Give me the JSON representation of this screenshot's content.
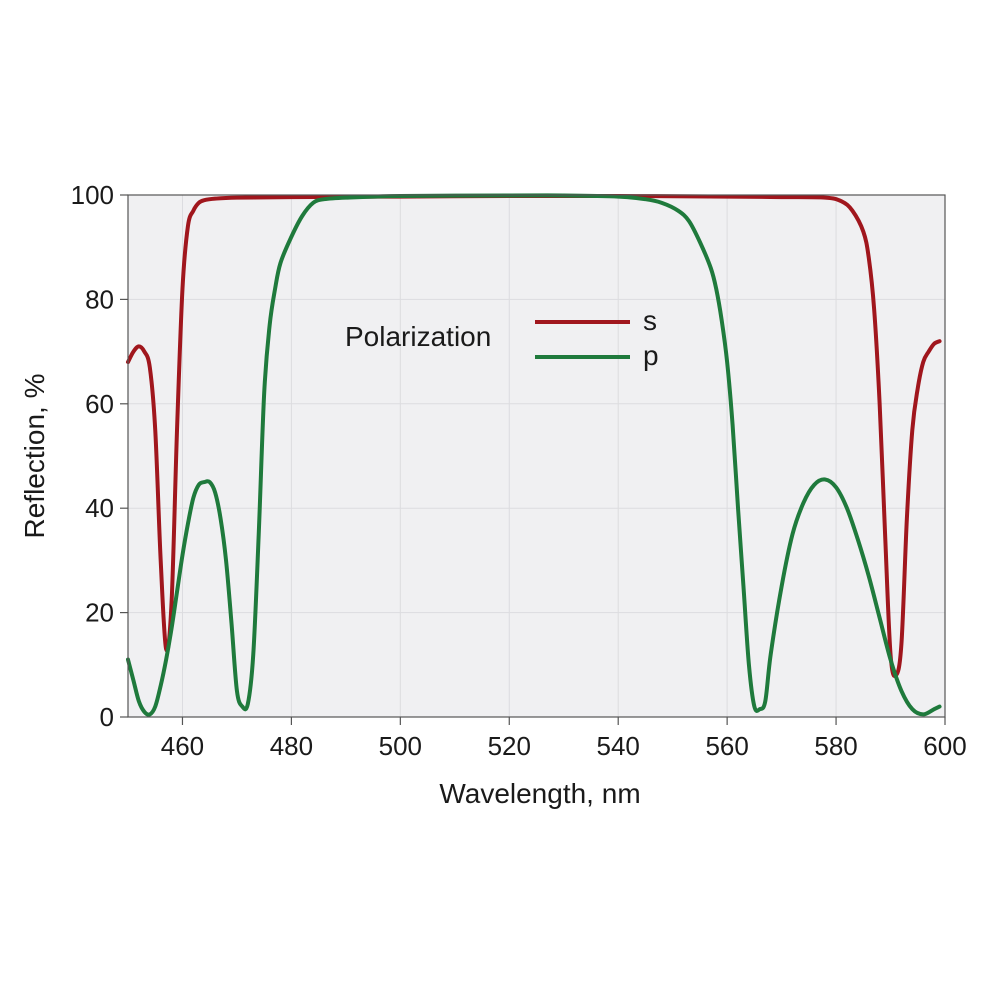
{
  "chart_data": {
    "type": "line",
    "xlabel": "Wavelength, nm",
    "ylabel": "Reflection, %",
    "xlim": [
      450,
      600
    ],
    "ylim": [
      0,
      100
    ],
    "x_ticks": [
      460,
      480,
      500,
      520,
      540,
      560,
      580,
      600
    ],
    "y_ticks": [
      0,
      20,
      40,
      60,
      80,
      100
    ],
    "grid": true,
    "legend": {
      "title": "Polarization",
      "placement": "upper-center"
    },
    "colors": {
      "s": "#a0161d",
      "p": "#1f7a3c",
      "plot_background": "#f0f0f2",
      "grid": "#dcdcdf"
    },
    "series": [
      {
        "name": "s",
        "color": "#a0161d",
        "points": [
          [
            450,
            68
          ],
          [
            451,
            70
          ],
          [
            452,
            71
          ],
          [
            453,
            70
          ],
          [
            454,
            67
          ],
          [
            455,
            55
          ],
          [
            456,
            30
          ],
          [
            457,
            13
          ],
          [
            458,
            22
          ],
          [
            459,
            55
          ],
          [
            460,
            82
          ],
          [
            461,
            94
          ],
          [
            462,
            97
          ],
          [
            463,
            98.5
          ],
          [
            464,
            99
          ],
          [
            466,
            99.3
          ],
          [
            470,
            99.5
          ],
          [
            480,
            99.6
          ],
          [
            500,
            99.7
          ],
          [
            520,
            99.8
          ],
          [
            540,
            99.8
          ],
          [
            560,
            99.7
          ],
          [
            570,
            99.6
          ],
          [
            578,
            99.5
          ],
          [
            581,
            98.8
          ],
          [
            583,
            97
          ],
          [
            585,
            93
          ],
          [
            586,
            88
          ],
          [
            587,
            78
          ],
          [
            588,
            60
          ],
          [
            589,
            35
          ],
          [
            590,
            12
          ],
          [
            591,
            8
          ],
          [
            592,
            14
          ],
          [
            593,
            38
          ],
          [
            594,
            55
          ],
          [
            595,
            63
          ],
          [
            596,
            68
          ],
          [
            597,
            70
          ],
          [
            598,
            71.5
          ],
          [
            599,
            72
          ]
        ]
      },
      {
        "name": "p",
        "color": "#1f7a3c",
        "points": [
          [
            450,
            11
          ],
          [
            451,
            7
          ],
          [
            452,
            3
          ],
          [
            453,
            1
          ],
          [
            454,
            0.5
          ],
          [
            455,
            2
          ],
          [
            456,
            6
          ],
          [
            457,
            11
          ],
          [
            458,
            17
          ],
          [
            459,
            24
          ],
          [
            460,
            31
          ],
          [
            461,
            37
          ],
          [
            462,
            42
          ],
          [
            463,
            44.5
          ],
          [
            464,
            45
          ],
          [
            465,
            45
          ],
          [
            466,
            43
          ],
          [
            467,
            38
          ],
          [
            468,
            30
          ],
          [
            469,
            18
          ],
          [
            470,
            5
          ],
          [
            471,
            2
          ],
          [
            472,
            2.5
          ],
          [
            473,
            12
          ],
          [
            474,
            35
          ],
          [
            475,
            62
          ],
          [
            476,
            75
          ],
          [
            477,
            82
          ],
          [
            478,
            87
          ],
          [
            480,
            92
          ],
          [
            482,
            96
          ],
          [
            484,
            98.5
          ],
          [
            486,
            99.2
          ],
          [
            490,
            99.5
          ],
          [
            500,
            99.8
          ],
          [
            520,
            99.9
          ],
          [
            530,
            99.9
          ],
          [
            540,
            99.7
          ],
          [
            545,
            99.2
          ],
          [
            548,
            98.5
          ],
          [
            551,
            97
          ],
          [
            553,
            95
          ],
          [
            555,
            91
          ],
          [
            557,
            86
          ],
          [
            558,
            82
          ],
          [
            559,
            76
          ],
          [
            560,
            68
          ],
          [
            561,
            56
          ],
          [
            562,
            40
          ],
          [
            563,
            25
          ],
          [
            564,
            10
          ],
          [
            565,
            2
          ],
          [
            566,
            1.5
          ],
          [
            567,
            3
          ],
          [
            568,
            12
          ],
          [
            570,
            25
          ],
          [
            572,
            35
          ],
          [
            574,
            41
          ],
          [
            576,
            44.5
          ],
          [
            578,
            45.5
          ],
          [
            580,
            44
          ],
          [
            582,
            40
          ],
          [
            584,
            34
          ],
          [
            586,
            27
          ],
          [
            588,
            19
          ],
          [
            590,
            11
          ],
          [
            592,
            5
          ],
          [
            594,
            1.5
          ],
          [
            596,
            0.5
          ],
          [
            598,
            1.5
          ],
          [
            599,
            2
          ]
        ]
      }
    ]
  }
}
